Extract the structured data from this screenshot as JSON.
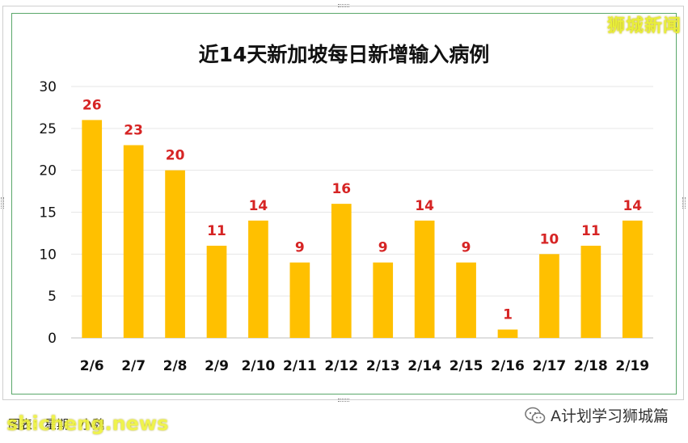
{
  "brand": "狮城新闻",
  "source_text": "图表：星期 · 小魏",
  "watermark_site": "shicheng.news",
  "wechat_account": "A计划学习狮城篇",
  "colors": {
    "bar": "#FFC000",
    "data_label": "#D62424",
    "grid": "#E6E6E6"
  },
  "chart_data": {
    "type": "bar",
    "title": "近14天新加坡每日新增输入病例",
    "xlabel": "",
    "ylabel": "",
    "categories": [
      "2/6",
      "2/7",
      "2/8",
      "2/9",
      "2/10",
      "2/11",
      "2/12",
      "2/13",
      "2/14",
      "2/15",
      "2/16",
      "2/17",
      "2/18",
      "2/19"
    ],
    "values": [
      26,
      23,
      20,
      11,
      14,
      9,
      16,
      9,
      14,
      9,
      1,
      10,
      11,
      14
    ],
    "ylim": [
      0,
      30
    ],
    "yticks": [
      0,
      5,
      10,
      15,
      20,
      25,
      30
    ],
    "grid": true,
    "data_labels": true,
    "legend": "none"
  }
}
